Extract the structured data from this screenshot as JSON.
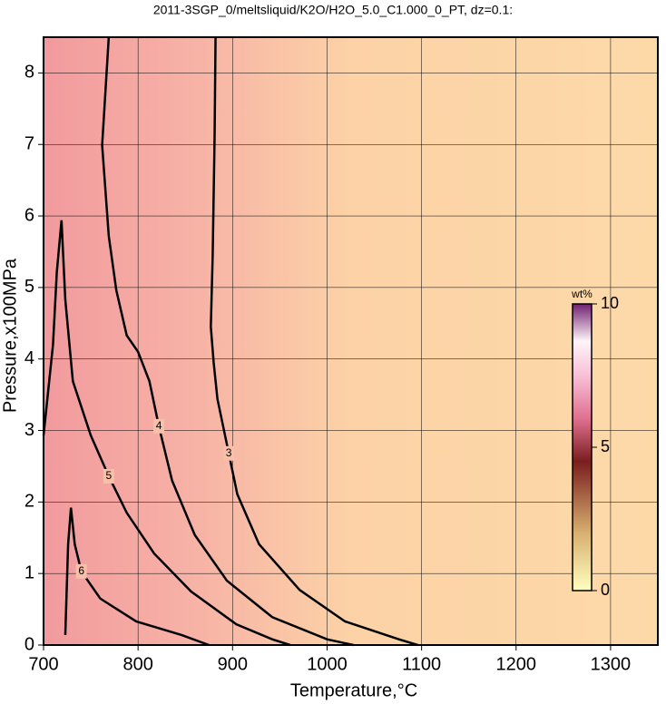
{
  "chart_data": {
    "type": "contour",
    "title": "2011-3SGP_0/meltsliquid/K2O/H2O_5.0_C1.000_0_PT, dz=0.1:",
    "xlabel": "Temperature,°C",
    "ylabel": "Pressure,x100MPa",
    "xlim": [
      700,
      1350
    ],
    "ylim": [
      0,
      8.5
    ],
    "xticks": [
      700,
      800,
      900,
      1000,
      1100,
      1200,
      1300
    ],
    "yticks": [
      0,
      1,
      2,
      3,
      4,
      5,
      6,
      7,
      8
    ],
    "grid": true,
    "line_color": "#000000",
    "contours": [
      {
        "level": 3,
        "x": [
          882,
          881,
          879,
          877,
          880,
          884,
          896,
          905,
          928,
          971,
          1019,
          1076,
          1096
        ],
        "y": [
          8.5,
          7.12,
          5.47,
          4.45,
          3.95,
          3.44,
          2.68,
          2.11,
          1.41,
          0.77,
          0.33,
          0.08,
          0
        ]
      },
      {
        "level": 4,
        "x": [
          769,
          762,
          769,
          777,
          788,
          800,
          812,
          822,
          836,
          860,
          894,
          942,
          1000,
          1028
        ],
        "y": [
          8.5,
          6.99,
          5.72,
          4.96,
          4.33,
          4.1,
          3.69,
          3.06,
          2.3,
          1.54,
          0.9,
          0.39,
          0.08,
          0
        ]
      },
      {
        "level": 5,
        "x": [
          700,
          710,
          714,
          719,
          723,
          731,
          750,
          769,
          788,
          817,
          856,
          904,
          942,
          961
        ],
        "y": [
          2.93,
          4.2,
          5.21,
          5.94,
          4.83,
          3.69,
          2.93,
          2.36,
          1.85,
          1.28,
          0.75,
          0.29,
          0.08,
          0
        ]
      },
      {
        "level": 6,
        "x": [
          723,
          726,
          729,
          733,
          740,
          760,
          798,
          846,
          875
        ],
        "y": [
          0.14,
          1.41,
          1.92,
          1.41,
          1.03,
          0.65,
          0.33,
          0.14,
          0
        ]
      }
    ],
    "colorbar": {
      "label": "wt%",
      "lim": [
        0,
        10
      ],
      "ticks": [
        0,
        5,
        10
      ]
    }
  }
}
